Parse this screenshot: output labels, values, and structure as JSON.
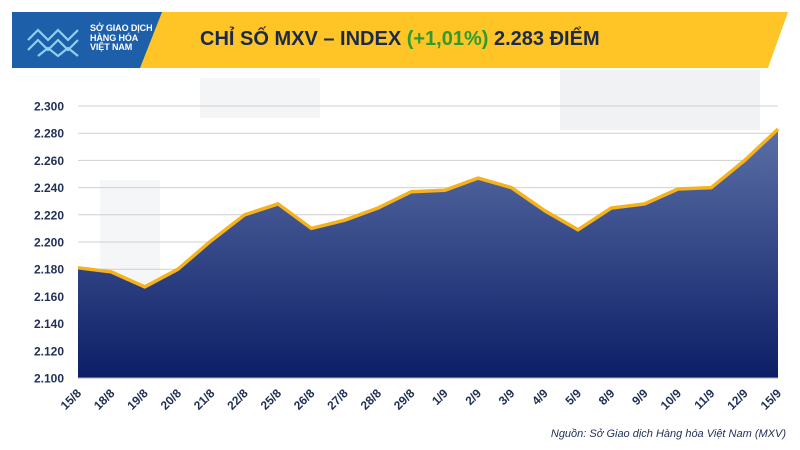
{
  "logo": {
    "lines": [
      "SỞ GIAO DỊCH",
      "HÀNG HÓA",
      "VIỆT NAM"
    ]
  },
  "header": {
    "title_prefix": "CHỈ SỐ MXV – INDEX",
    "title_change": "(+1,01%)",
    "title_value": "2.283 ĐIỂM"
  },
  "source": "Nguồn: Sở Giao dịch Hàng hóa Việt Nam (MXV)",
  "colors": {
    "banner": "#ffc425",
    "area_top": "#5a6fa6",
    "area_bottom": "#0c1e66",
    "line": "#f6b21a",
    "change_green": "#2e9b2e"
  },
  "chart_data": {
    "type": "area",
    "categories": [
      "15/8",
      "18/8",
      "19/8",
      "20/8",
      "21/8",
      "22/8",
      "25/8",
      "26/8",
      "27/8",
      "28/8",
      "29/8",
      "1/9",
      "2/9",
      "3/9",
      "4/9",
      "5/9",
      "8/9",
      "9/9",
      "10/9",
      "11/9",
      "12/9",
      "15/9"
    ],
    "values": [
      2181,
      2178,
      2167,
      2180,
      2201,
      2220,
      2228,
      2210,
      2216,
      2225,
      2237,
      2238,
      2247,
      2240,
      2223,
      2209,
      2225,
      2228,
      2239,
      2240,
      2260,
      2283
    ],
    "ylim": [
      2100,
      2300
    ],
    "yticks": [
      "2.100",
      "2.120",
      "2.140",
      "2.160",
      "2.180",
      "2.200",
      "2.220",
      "2.240",
      "2.260",
      "2.280",
      "2.300"
    ],
    "grid": true
  }
}
